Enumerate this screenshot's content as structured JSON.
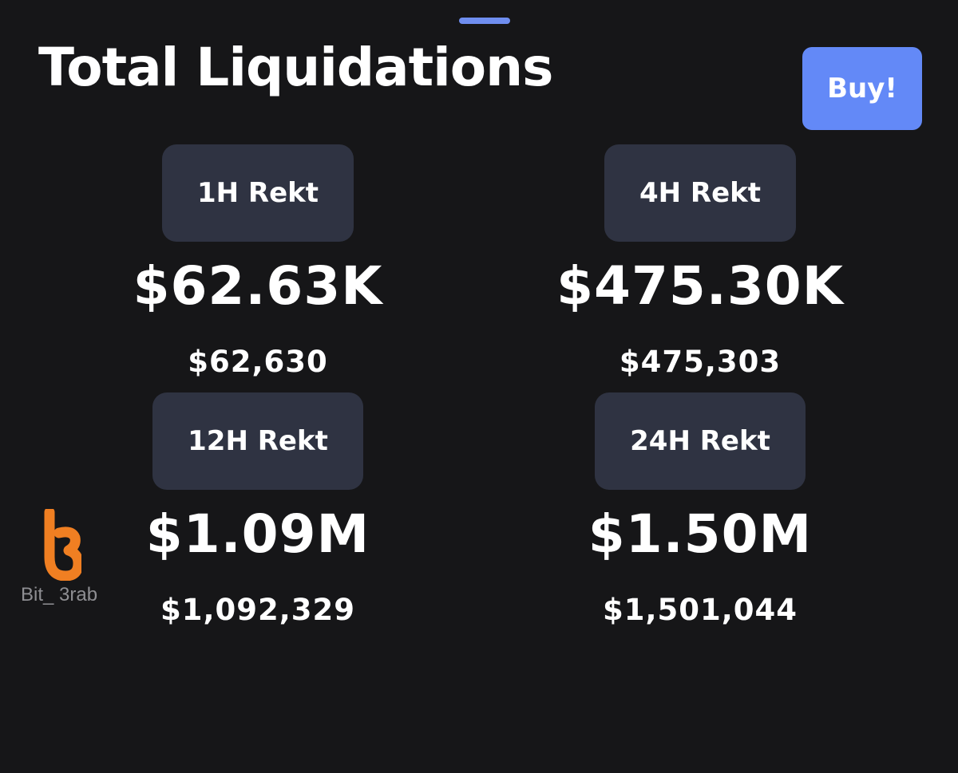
{
  "header": {
    "title": "Total Liquidations",
    "buy_label": "Buy!"
  },
  "stats": [
    {
      "label": "1H Rekt",
      "value": "$62.63K",
      "exact": "$62,630"
    },
    {
      "label": "4H Rekt",
      "value": "$475.30K",
      "exact": "$475,303"
    },
    {
      "label": "12H Rekt",
      "value": "$1.09M",
      "exact": "$1,092,329"
    },
    {
      "label": "24H Rekt",
      "value": "$1.50M",
      "exact": "$1,501,044"
    }
  ],
  "watermark": {
    "text": "Bit_ 3rab",
    "logo_icon": "bit3rab-logo-icon",
    "logo_color": "#f07f22"
  },
  "colors": {
    "background": "#161618",
    "accent": "#6389f7",
    "card": "#2f3342",
    "handle": "#6f8ef0"
  }
}
